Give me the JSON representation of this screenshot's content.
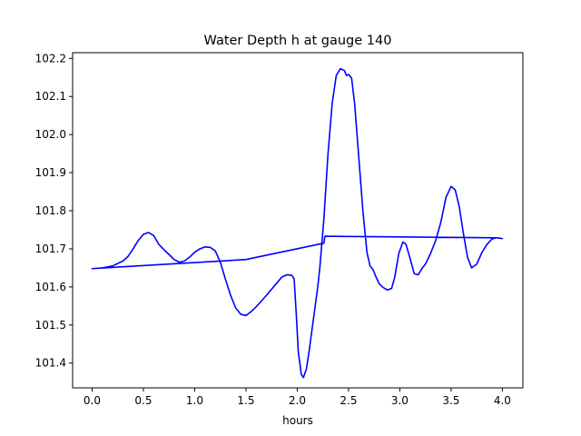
{
  "chart_data": {
    "type": "line",
    "title": "Water Depth h at gauge 140",
    "xlabel": "hours",
    "ylabel": "",
    "xlim": [
      -0.19,
      4.2
    ],
    "ylim": [
      101.335,
      102.215
    ],
    "grid": false,
    "x_ticks": [
      "0.0",
      "0.5",
      "1.0",
      "1.5",
      "2.0",
      "2.5",
      "3.0",
      "3.5",
      "4.0"
    ],
    "y_ticks": [
      "101.4",
      "101.5",
      "101.6",
      "101.7",
      "101.8",
      "101.9",
      "102.0",
      "102.1",
      "102.2"
    ],
    "line_color": "#0000ff",
    "series": [
      {
        "points": [
          [
            0.0,
            101.648
          ],
          [
            0.1,
            101.65
          ],
          [
            0.2,
            101.655
          ],
          [
            0.3,
            101.668
          ],
          [
            0.35,
            101.68
          ],
          [
            0.4,
            101.7
          ],
          [
            0.45,
            101.722
          ],
          [
            0.5,
            101.738
          ],
          [
            0.55,
            101.743
          ],
          [
            0.6,
            101.735
          ],
          [
            0.65,
            101.712
          ],
          [
            0.7,
            101.698
          ],
          [
            0.75,
            101.685
          ],
          [
            0.8,
            101.672
          ],
          [
            0.85,
            101.665
          ],
          [
            0.9,
            101.668
          ],
          [
            0.95,
            101.678
          ],
          [
            1.0,
            101.691
          ],
          [
            1.05,
            101.7
          ],
          [
            1.1,
            101.705
          ],
          [
            1.15,
            101.704
          ],
          [
            1.2,
            101.695
          ],
          [
            1.25,
            101.665
          ],
          [
            1.3,
            101.62
          ],
          [
            1.35,
            101.578
          ],
          [
            1.4,
            101.545
          ],
          [
            1.45,
            101.528
          ],
          [
            1.5,
            101.525
          ],
          [
            1.55,
            101.535
          ],
          [
            1.6,
            101.548
          ],
          [
            1.7,
            101.578
          ],
          [
            1.8,
            101.61
          ],
          [
            1.85,
            101.626
          ],
          [
            1.9,
            101.632
          ],
          [
            1.95,
            101.63
          ],
          [
            1.97,
            101.62
          ],
          [
            1.99,
            101.53
          ],
          [
            2.01,
            101.43
          ],
          [
            2.04,
            101.37
          ],
          [
            2.06,
            101.362
          ],
          [
            2.09,
            101.385
          ],
          [
            2.12,
            101.44
          ],
          [
            2.15,
            101.5
          ],
          [
            2.18,
            101.56
          ],
          [
            2.2,
            101.6
          ],
          [
            2.22,
            101.65
          ],
          [
            2.26,
            101.78
          ],
          [
            2.3,
            101.95
          ],
          [
            2.34,
            102.08
          ],
          [
            2.38,
            102.155
          ],
          [
            2.42,
            102.173
          ],
          [
            2.46,
            102.168
          ],
          [
            2.48,
            102.155
          ],
          [
            2.5,
            102.158
          ],
          [
            2.53,
            102.148
          ],
          [
            2.56,
            102.08
          ],
          [
            2.6,
            101.94
          ],
          [
            2.64,
            101.8
          ],
          [
            2.68,
            101.69
          ],
          [
            2.71,
            101.655
          ],
          [
            2.74,
            101.645
          ],
          [
            2.77,
            101.625
          ],
          [
            2.8,
            101.608
          ],
          [
            2.84,
            101.598
          ],
          [
            2.88,
            101.592
          ],
          [
            2.92,
            101.596
          ],
          [
            2.95,
            101.625
          ],
          [
            2.99,
            101.688
          ],
          [
            3.03,
            101.718
          ],
          [
            3.06,
            101.712
          ],
          [
            3.1,
            101.675
          ],
          [
            3.14,
            101.635
          ],
          [
            3.18,
            101.632
          ],
          [
            3.22,
            101.65
          ],
          [
            3.25,
            101.66
          ],
          [
            3.3,
            101.688
          ],
          [
            3.35,
            101.722
          ],
          [
            3.4,
            101.77
          ],
          [
            3.45,
            101.835
          ],
          [
            3.5,
            101.864
          ],
          [
            3.54,
            101.855
          ],
          [
            3.58,
            101.81
          ],
          [
            3.62,
            101.74
          ],
          [
            3.66,
            101.678
          ],
          [
            3.7,
            101.65
          ],
          [
            3.75,
            101.66
          ],
          [
            3.8,
            101.69
          ],
          [
            3.85,
            101.712
          ],
          [
            3.9,
            101.726
          ],
          [
            3.94,
            101.729
          ],
          [
            3.97,
            101.728
          ],
          [
            4.0,
            101.727
          ],
          [
            3.94,
            101.729
          ],
          [
            2.27,
            101.733
          ],
          [
            2.26,
            101.715
          ],
          [
            1.5,
            101.672
          ],
          [
            0.0,
            101.648
          ]
        ]
      }
    ]
  }
}
